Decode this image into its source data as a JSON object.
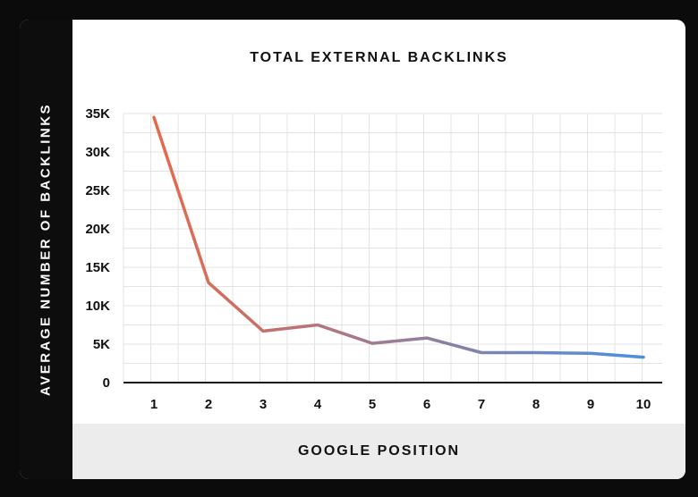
{
  "chart_data": {
    "type": "line",
    "title": "TOTAL EXTERNAL BACKLINKS",
    "xlabel": "GOOGLE POSITION",
    "ylabel": "AVERAGE NUMBER OF BACKLINKS",
    "x": [
      1,
      2,
      3,
      4,
      5,
      6,
      7,
      8,
      9,
      10
    ],
    "series": [
      {
        "values": [
          34500,
          13000,
          6700,
          7500,
          5100,
          5800,
          3900,
          3900,
          3800,
          3300
        ]
      }
    ],
    "ylim": [
      0,
      35000
    ],
    "yticks": [
      0,
      5000,
      10000,
      15000,
      20000,
      25000,
      30000,
      35000
    ],
    "ytick_labels": [
      "0",
      "5K",
      "10K",
      "15K",
      "20K",
      "25K",
      "30K",
      "35K"
    ],
    "xtick_labels": [
      "1",
      "2",
      "3",
      "4",
      "5",
      "6",
      "7",
      "8",
      "9",
      "10"
    ],
    "grid": true,
    "line_color_start": "#e8694a",
    "line_color_end": "#4a90e2"
  }
}
